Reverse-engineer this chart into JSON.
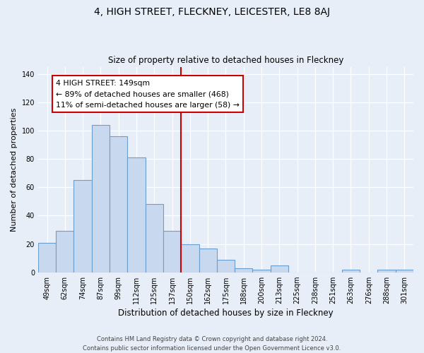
{
  "title": "4, HIGH STREET, FLECKNEY, LEICESTER, LE8 8AJ",
  "subtitle": "Size of property relative to detached houses in Fleckney",
  "xlabel": "Distribution of detached houses by size in Fleckney",
  "ylabel": "Number of detached properties",
  "bar_labels": [
    "49sqm",
    "62sqm",
    "74sqm",
    "87sqm",
    "99sqm",
    "112sqm",
    "125sqm",
    "137sqm",
    "150sqm",
    "162sqm",
    "175sqm",
    "188sqm",
    "200sqm",
    "213sqm",
    "225sqm",
    "238sqm",
    "251sqm",
    "263sqm",
    "276sqm",
    "288sqm",
    "301sqm"
  ],
  "bar_values": [
    21,
    29,
    65,
    104,
    96,
    81,
    48,
    29,
    20,
    17,
    9,
    3,
    2,
    5,
    0,
    0,
    0,
    2,
    0,
    2,
    2
  ],
  "bar_color": "#c8d9ef",
  "bar_edge_color": "#6a9ecf",
  "vline_x_index": 8,
  "vline_color": "#cc0000",
  "annotation_title": "4 HIGH STREET: 149sqm",
  "annotation_line1": "← 89% of detached houses are smaller (468)",
  "annotation_line2": "11% of semi-detached houses are larger (58) →",
  "annotation_box_color": "#ffffff",
  "annotation_box_edge": "#cc0000",
  "ylim": [
    0,
    145
  ],
  "footer1": "Contains HM Land Registry data © Crown copyright and database right 2024.",
  "footer2": "Contains public sector information licensed under the Open Government Licence v3.0.",
  "background_color": "#e8eef8"
}
